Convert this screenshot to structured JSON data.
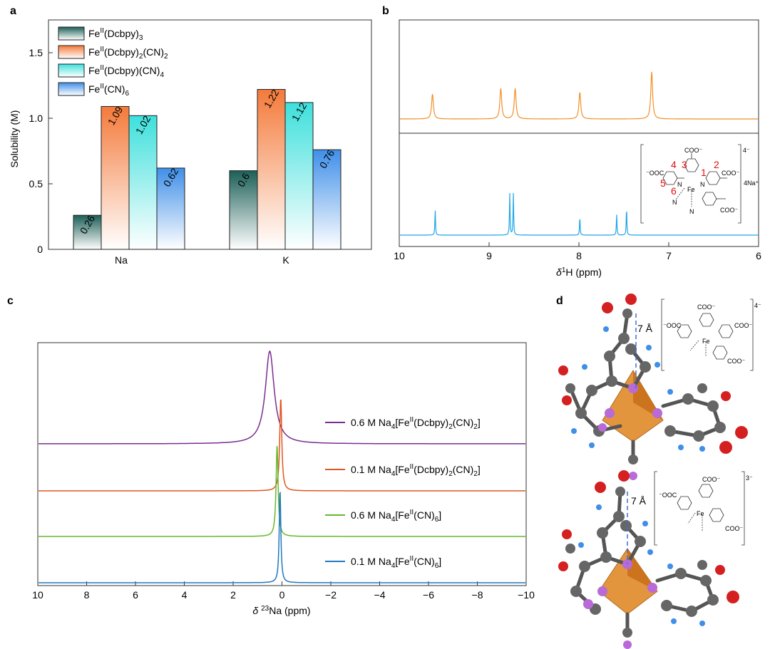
{
  "panels": {
    "a": "a",
    "b": "b",
    "c": "c",
    "d": "d"
  },
  "colors": {
    "dcbpy3": "#1c5f57",
    "dcbpy2cn2": "#f47a3a",
    "dcbpycn4": "#3ee0dc",
    "cn6": "#3f8fe9",
    "nmr_top": "#f28f28",
    "nmr_bottom": "#1ea6e6",
    "c_purple": "#7a2d8f",
    "c_orange": "#e0561e",
    "c_green": "#66b82e",
    "c_blue": "#1f78c0"
  },
  "chart_data": [
    {
      "type": "bar",
      "panel": "a",
      "ylabel": "Solubility (M)",
      "ylim": [
        0,
        1.75
      ],
      "yticks": [
        "0",
        "0.5",
        "1.0",
        "1.5"
      ],
      "categories": [
        "Na",
        "K"
      ],
      "legend_position": "top-left",
      "series": [
        {
          "name": "Fe(Dcbpy)3",
          "legend": {
            "base": "Fe",
            "sup": "II",
            "mid": "(Dcbpy)",
            "sub": "3",
            "tail": "",
            "sub2": ""
          },
          "values": [
            0.26,
            0.6
          ],
          "labels": [
            "0.26",
            "0.6"
          ]
        },
        {
          "name": "Fe(Dcbpy)2(CN)2",
          "legend": {
            "base": "Fe",
            "sup": "II",
            "mid": "(Dcbpy)",
            "sub": "2",
            "tail": "(CN)",
            "sub2": "2"
          },
          "values": [
            1.09,
            1.22
          ],
          "labels": [
            "1.09",
            "1.22"
          ]
        },
        {
          "name": "Fe(Dcbpy)(CN)4",
          "legend": {
            "base": "Fe",
            "sup": "II",
            "mid": "(Dcbpy)(CN)",
            "sub": "4",
            "tail": "",
            "sub2": ""
          },
          "values": [
            1.02,
            1.12
          ],
          "labels": [
            "1.02",
            "1.12"
          ]
        },
        {
          "name": "Fe(CN)6",
          "legend": {
            "base": "Fe",
            "sup": "II",
            "mid": "(CN)",
            "sub": "6",
            "tail": "",
            "sub2": ""
          },
          "values": [
            0.62,
            0.76
          ],
          "labels": [
            "0.62",
            "0.76"
          ]
        }
      ]
    },
    {
      "type": "line",
      "panel": "b",
      "xlabel": {
        "pre": "δ",
        "sup": "1",
        "post": "H (ppm)"
      },
      "xlim": [
        10,
        6
      ],
      "xticks": [
        "10",
        "9",
        "8",
        "7",
        "6"
      ],
      "series": [
        {
          "name": "top",
          "peaks": [
            {
              "ppm": 9.63,
              "height": 0.45
            },
            {
              "ppm": 8.87,
              "height": 0.55
            },
            {
              "ppm": 8.71,
              "height": 0.55
            },
            {
              "ppm": 7.99,
              "height": 0.48
            },
            {
              "ppm": 7.19,
              "height": 0.85
            }
          ]
        },
        {
          "name": "bottom",
          "peaks": [
            {
              "ppm": 9.6,
              "height": 0.55
            },
            {
              "ppm": 8.77,
              "height": 0.9
            },
            {
              "ppm": 8.73,
              "height": 0.9
            },
            {
              "ppm": 7.99,
              "height": 0.4
            },
            {
              "ppm": 7.58,
              "height": 0.45
            },
            {
              "ppm": 7.47,
              "height": 0.6
            }
          ]
        }
      ]
    },
    {
      "type": "line",
      "panel": "c",
      "xlabel": {
        "pre": "δ ",
        "sup": "23",
        "post": "Na (ppm)"
      },
      "xlim": [
        10,
        -10
      ],
      "xticks": [
        "10",
        "8",
        "6",
        "4",
        "2",
        "0",
        "−2",
        "−4",
        "−6",
        "−8",
        "−10"
      ],
      "series": [
        {
          "name": "0.6 M Dcbpy2CN2",
          "label": {
            "pre": "0.6 M Na",
            "s1": "4",
            "m1": "[Fe",
            "sup": "II",
            "m2": "(Dcbpy)",
            "s2": "2",
            "m3": "(CN)",
            "s3": "2",
            "end": "]"
          },
          "peak_ppm": 0.5,
          "height": 1.0,
          "width": 0.22
        },
        {
          "name": "0.1 M Dcbpy2CN2",
          "label": {
            "pre": "0.1 M Na",
            "s1": "4",
            "m1": "[Fe",
            "sup": "II",
            "m2": "(Dcbpy)",
            "s2": "2",
            "m3": "(CN)",
            "s3": "2",
            "end": "]"
          },
          "peak_ppm": 0.05,
          "height": 1.0,
          "width": 0.05
        },
        {
          "name": "0.6 M CN6",
          "label": {
            "pre": "0.6 M Na",
            "s1": "4",
            "m1": "[Fe",
            "sup": "II",
            "m2": "(CN)",
            "s2": "6",
            "m3": "",
            "s3": "",
            "end": "]"
          },
          "peak_ppm": 0.2,
          "height": 1.0,
          "width": 0.05
        },
        {
          "name": "0.1 M CN6",
          "label": {
            "pre": "0.1 M Na",
            "s1": "4",
            "m1": "[Fe",
            "sup": "II",
            "m2": "(CN)",
            "s2": "6",
            "m3": "",
            "s3": "",
            "end": "]"
          },
          "peak_ppm": 0.08,
          "height": 1.0,
          "width": 0.04
        }
      ]
    }
  ],
  "structure": {
    "coo": "COO",
    "coo_left": "OOC",
    "minus": "⁻",
    "charge4": "4⁻",
    "charge3": "3⁻",
    "counter": "4Na⁺",
    "fe": "Fe",
    "n": "N",
    "nums": [
      "1",
      "2",
      "3",
      "4",
      "5",
      "6"
    ]
  },
  "panel_d": {
    "distance_top": "7 Å",
    "distance_bottom": "7 Å"
  }
}
